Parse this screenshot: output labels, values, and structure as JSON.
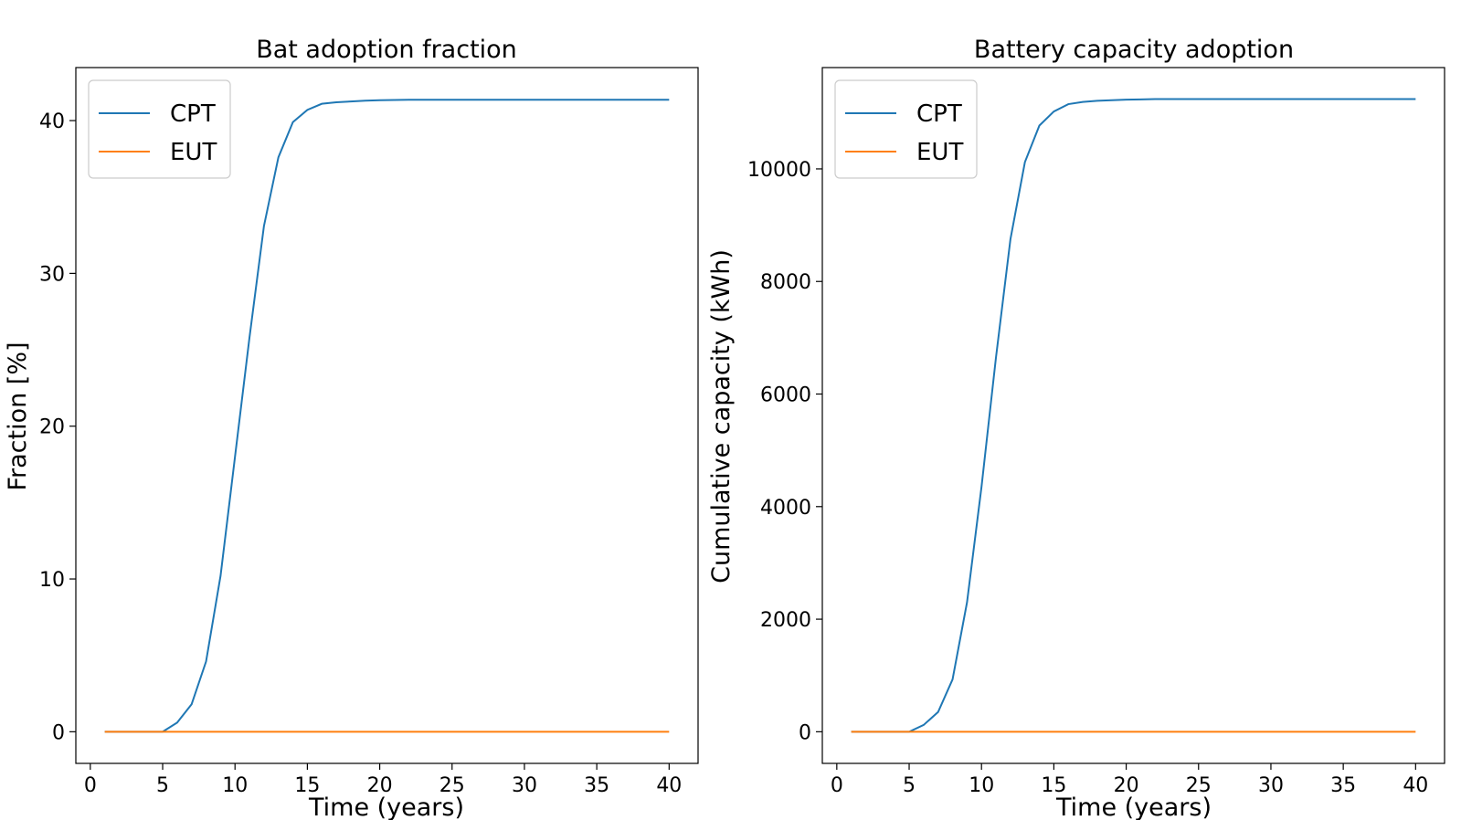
{
  "chart_data": [
    {
      "type": "line",
      "title": "Bat adoption fraction",
      "xlabel": "Time (years)",
      "ylabel": "Fraction [%]",
      "xlim": [
        -1,
        42
      ],
      "ylim": [
        -2.07,
        43.47
      ],
      "xticks": [
        0,
        5,
        10,
        15,
        20,
        25,
        30,
        35,
        40
      ],
      "yticks": [
        0,
        10,
        20,
        30,
        40
      ],
      "legend": "upper-left",
      "grid": false,
      "x": [
        1,
        2,
        3,
        4,
        5,
        6,
        7,
        8,
        9,
        10,
        11,
        12,
        13,
        14,
        15,
        16,
        17,
        18,
        19,
        20,
        21,
        22,
        23,
        24,
        25,
        26,
        27,
        28,
        29,
        30,
        31,
        32,
        33,
        34,
        35,
        36,
        37,
        38,
        39,
        40
      ],
      "series": [
        {
          "name": "CPT",
          "color": "#1f77b4",
          "values": [
            0,
            0,
            0,
            0,
            0,
            0.6,
            1.8,
            4.6,
            10.2,
            18.0,
            25.8,
            33.1,
            37.6,
            39.9,
            40.7,
            41.1,
            41.2,
            41.25,
            41.3,
            41.33,
            41.35,
            41.36,
            41.36,
            41.36,
            41.36,
            41.36,
            41.36,
            41.36,
            41.36,
            41.36,
            41.36,
            41.36,
            41.36,
            41.36,
            41.36,
            41.36,
            41.36,
            41.36,
            41.36,
            41.36
          ]
        },
        {
          "name": "EUT",
          "color": "#ff7f0e",
          "values": [
            0,
            0,
            0,
            0,
            0,
            0,
            0,
            0,
            0,
            0,
            0,
            0,
            0,
            0,
            0,
            0,
            0,
            0,
            0,
            0,
            0,
            0,
            0,
            0,
            0,
            0,
            0,
            0,
            0,
            0,
            0,
            0,
            0,
            0,
            0,
            0,
            0,
            0,
            0,
            0
          ]
        }
      ]
    },
    {
      "type": "line",
      "title": "Battery capacity adoption",
      "xlabel": "Time (years)",
      "ylabel": "Cumulative capacity (kWh)",
      "xlim": [
        -1,
        42
      ],
      "ylim": [
        -562,
        11800
      ],
      "xticks": [
        0,
        5,
        10,
        15,
        20,
        25,
        30,
        35,
        40
      ],
      "yticks": [
        0,
        2000,
        4000,
        6000,
        8000,
        10000
      ],
      "legend": "upper-left",
      "grid": false,
      "x": [
        1,
        2,
        3,
        4,
        5,
        6,
        7,
        8,
        9,
        10,
        11,
        12,
        13,
        14,
        15,
        16,
        17,
        18,
        19,
        20,
        21,
        22,
        23,
        24,
        25,
        26,
        27,
        28,
        29,
        30,
        31,
        32,
        33,
        34,
        35,
        36,
        37,
        38,
        39,
        40
      ],
      "series": [
        {
          "name": "CPT",
          "color": "#1f77b4",
          "values": [
            0,
            0,
            0,
            0,
            0,
            120,
            350,
            930,
            2300,
            4350,
            6650,
            8750,
            10120,
            10770,
            11020,
            11150,
            11190,
            11210,
            11220,
            11230,
            11235,
            11240,
            11240,
            11240,
            11240,
            11240,
            11240,
            11240,
            11240,
            11240,
            11240,
            11240,
            11240,
            11240,
            11240,
            11240,
            11240,
            11240,
            11240,
            11240
          ]
        },
        {
          "name": "EUT",
          "color": "#ff7f0e",
          "values": [
            0,
            0,
            0,
            0,
            0,
            0,
            0,
            0,
            0,
            0,
            0,
            0,
            0,
            0,
            0,
            0,
            0,
            0,
            0,
            0,
            0,
            0,
            0,
            0,
            0,
            0,
            0,
            0,
            0,
            0,
            0,
            0,
            0,
            0,
            0,
            0,
            0,
            0,
            0,
            0
          ]
        }
      ]
    }
  ]
}
